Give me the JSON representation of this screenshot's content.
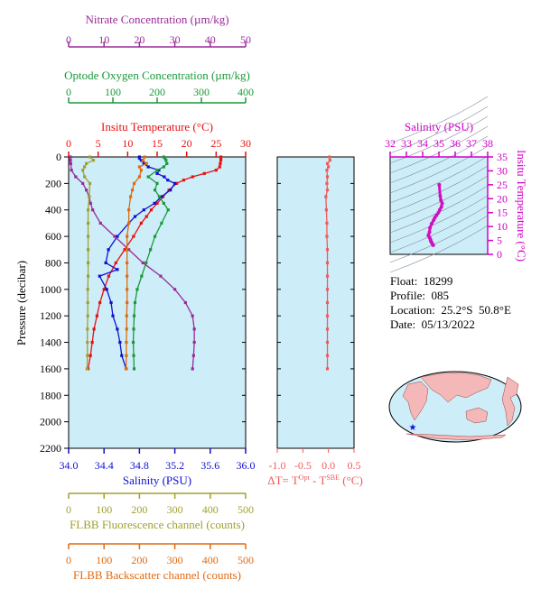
{
  "colors": {
    "nitrate": "#9a2a9a",
    "oxygen": "#1a9a3a",
    "temperature": "#e81010",
    "salinity": "#1010d0",
    "fluorescence": "#a0a030",
    "backscatter": "#e06a10",
    "delta_t": "#f05a5a",
    "panel_bg": "#cdeef8",
    "ts_line": "#d010c0",
    "magenta": "#d000c8"
  },
  "info": {
    "float": "Float:  18299",
    "profile": "Profile:  085",
    "location": "Location:  25.2°S  50.8°E",
    "date": "Date:  05/13/2022"
  },
  "chart_data": [
    {
      "type": "line",
      "title": "",
      "ylabel": "Pressure (decibar)",
      "ylim": [
        2200,
        0
      ],
      "yticks": [
        "0",
        "200",
        "400",
        "600",
        "800",
        "1000",
        "1200",
        "1400",
        "1600",
        "1800",
        "2000",
        "2200"
      ],
      "axes": {
        "nitrate": {
          "label": "Nitrate Concentration (µm/kg)",
          "xlim": [
            0,
            50
          ],
          "ticks": [
            "0",
            "10",
            "20",
            "30",
            "40",
            "50"
          ]
        },
        "oxygen": {
          "label": "Optode Oxygen Concentration (µm/kg)",
          "xlim": [
            0,
            400
          ],
          "ticks": [
            "0",
            "100",
            "200",
            "300",
            "400"
          ]
        },
        "temperature": {
          "label": "Insitu Temperature (°C)",
          "xlim": [
            0,
            30
          ],
          "ticks": [
            "0",
            "5",
            "10",
            "15",
            "20",
            "25",
            "30"
          ]
        },
        "salinity": {
          "label": "Salinity (PSU)",
          "xlim": [
            34.0,
            36.0
          ],
          "ticks": [
            "34.0",
            "34.4",
            "34.8",
            "35.2",
            "35.6",
            "36.0"
          ]
        },
        "fluorescence": {
          "label": "FLBB Fluorescence channel (counts)",
          "xlim": [
            0,
            500
          ],
          "ticks": [
            "0",
            "100",
            "200",
            "300",
            "400",
            "500"
          ]
        },
        "backscatter": {
          "label": "FLBB Backscatter channel (counts)",
          "xlim": [
            0,
            500
          ],
          "ticks": [
            "0",
            "100",
            "200",
            "300",
            "400",
            "500"
          ]
        }
      },
      "series": [
        {
          "key": "temperature",
          "axis": "temperature",
          "pressure": [
            0,
            10,
            25,
            50,
            75,
            100,
            125,
            150,
            175,
            200,
            250,
            300,
            350,
            400,
            450,
            500,
            600,
            700,
            800,
            900,
            1000,
            1100,
            1200,
            1300,
            1400,
            1500,
            1600
          ],
          "values": [
            25.8,
            25.8,
            25.8,
            25.7,
            25.6,
            25.0,
            23.0,
            21.0,
            19.5,
            18.3,
            17.0,
            16.0,
            15.0,
            14.0,
            13.2,
            12.3,
            11.0,
            9.5,
            8.0,
            6.8,
            6.0,
            5.3,
            4.8,
            4.3,
            4.0,
            3.7,
            3.3
          ]
        },
        {
          "key": "salinity",
          "axis": "salinity",
          "pressure": [
            0,
            10,
            25,
            50,
            75,
            100,
            125,
            150,
            175,
            200,
            250,
            300,
            350,
            400,
            450,
            500,
            600,
            700,
            800,
            850,
            900,
            1000,
            1100,
            1200,
            1300,
            1400,
            1500,
            1600
          ],
          "values": [
            34.8,
            34.8,
            34.82,
            34.85,
            34.9,
            35.02,
            35.0,
            35.08,
            35.12,
            35.2,
            35.15,
            35.05,
            34.97,
            34.85,
            34.75,
            34.68,
            34.55,
            34.45,
            34.42,
            34.55,
            34.35,
            34.43,
            34.48,
            34.5,
            34.55,
            34.58,
            34.6,
            34.65
          ]
        },
        {
          "key": "oxygen",
          "axis": "oxygen",
          "pressure": [
            0,
            10,
            25,
            50,
            75,
            100,
            150,
            200,
            250,
            300,
            350,
            400,
            500,
            600,
            700,
            800,
            900,
            1000,
            1100,
            1200,
            1300,
            1400,
            1500,
            1600
          ],
          "values": [
            215,
            218,
            220,
            222,
            215,
            200,
            180,
            200,
            195,
            205,
            215,
            225,
            210,
            195,
            185,
            175,
            165,
            155,
            150,
            148,
            147,
            146,
            147,
            148
          ]
        },
        {
          "key": "nitrate",
          "axis": "nitrate",
          "pressure": [
            0,
            25,
            50,
            100,
            150,
            200,
            250,
            300,
            350,
            400,
            500,
            600,
            700,
            800,
            900,
            1000,
            1100,
            1200,
            1300,
            1400,
            1500,
            1600
          ],
          "values": [
            0.5,
            0.5,
            0.6,
            0.8,
            2.0,
            4.0,
            5.0,
            5.8,
            6.2,
            6.8,
            9.0,
            13.0,
            17.0,
            21.0,
            26.0,
            30.0,
            33.0,
            35.0,
            35.5,
            35.5,
            35.3,
            35.0
          ]
        },
        {
          "key": "fluorescence",
          "axis": "fluorescence",
          "pressure": [
            0,
            25,
            50,
            75,
            100,
            150,
            200,
            300,
            400,
            500,
            600,
            700,
            800,
            900,
            1000,
            1100,
            1200,
            1300,
            1400,
            1500,
            1600
          ],
          "values": [
            60,
            70,
            50,
            45,
            40,
            45,
            60,
            58,
            55,
            55,
            55,
            55,
            55,
            55,
            54,
            54,
            54,
            53,
            53,
            53,
            52
          ]
        },
        {
          "key": "backscatter",
          "axis": "backscatter",
          "pressure": [
            0,
            25,
            50,
            75,
            100,
            150,
            200,
            250,
            300,
            400,
            500,
            600,
            700,
            800,
            900,
            1000,
            1100,
            1200,
            1300,
            1400,
            1500,
            1600
          ],
          "values": [
            215,
            210,
            220,
            200,
            205,
            200,
            185,
            180,
            175,
            170,
            170,
            165,
            165,
            165,
            165,
            165,
            165,
            164,
            164,
            163,
            163,
            162
          ]
        }
      ]
    },
    {
      "type": "line",
      "title": "",
      "xlabel": "ΔT= T^Opt - T^SBE (°C)",
      "xlim": [
        -1.0,
        0.5
      ],
      "xticks": [
        "-1.0",
        "-0.5",
        "0.0",
        "0.5"
      ],
      "ylim": [
        2200,
        0
      ],
      "series": [
        {
          "key": "delta_t",
          "pressure": [
            0,
            25,
            50,
            75,
            100,
            150,
            200,
            250,
            300,
            400,
            500,
            600,
            700,
            800,
            900,
            1000,
            1100,
            1200,
            1300,
            1400,
            1500,
            1600
          ],
          "values": [
            0.02,
            0.03,
            -0.02,
            0.0,
            -0.03,
            -0.02,
            -0.03,
            -0.02,
            -0.05,
            -0.04,
            -0.03,
            -0.03,
            -0.02,
            -0.02,
            -0.02,
            -0.02,
            -0.02,
            -0.02,
            -0.02,
            -0.02,
            -0.02,
            -0.02
          ]
        }
      ]
    },
    {
      "type": "line",
      "title": "",
      "xlabel": "Salinity (PSU)",
      "ylabel": "Insitu Temperature (°C)",
      "xlim": [
        32,
        38
      ],
      "ylim": [
        0,
        35
      ],
      "xticks": [
        "32",
        "33",
        "34",
        "35",
        "36",
        "37",
        "38"
      ],
      "yticks": [
        "0",
        "5",
        "10",
        "15",
        "20",
        "25",
        "30",
        "35"
      ],
      "series": [
        {
          "key": "ts",
          "salinity": [
            35.02,
            35.08,
            35.12,
            35.2,
            35.15,
            35.05,
            34.97,
            34.85,
            34.75,
            34.68,
            34.55,
            34.45,
            34.42,
            34.35,
            34.43,
            34.48,
            34.5,
            34.55,
            34.6,
            34.65
          ],
          "temperature": [
            25.0,
            21.0,
            19.5,
            18.3,
            17.0,
            16.0,
            15.0,
            14.0,
            13.2,
            12.3,
            11.0,
            9.5,
            8.0,
            6.8,
            6.0,
            5.3,
            4.8,
            4.3,
            3.7,
            3.3
          ]
        }
      ]
    }
  ]
}
